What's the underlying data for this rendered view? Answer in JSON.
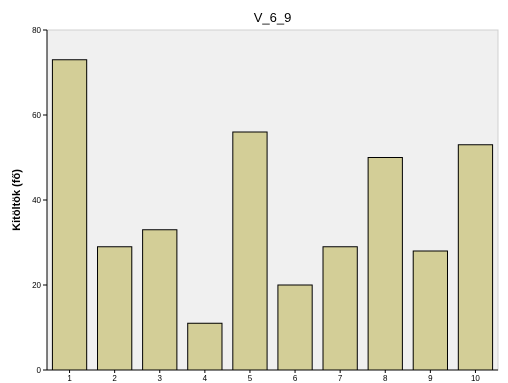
{
  "chart_data": {
    "type": "bar",
    "title": "V_6_9",
    "xlabel": "",
    "ylabel": "Kitöltök (fő)",
    "categories": [
      "1",
      "2",
      "3",
      "4",
      "5",
      "6",
      "7",
      "8",
      "9",
      "10"
    ],
    "values": [
      73,
      29,
      33,
      11,
      56,
      20,
      29,
      50,
      28,
      53
    ],
    "ylim": [
      0,
      80
    ],
    "yticks": [
      "0",
      "20",
      "40",
      "60",
      "80"
    ],
    "grid": false,
    "colors": {
      "plot_background": "#f0f0f0",
      "bar_fill": "#d3ce97",
      "bar_stroke": "#000000",
      "axis": "#000000"
    }
  }
}
